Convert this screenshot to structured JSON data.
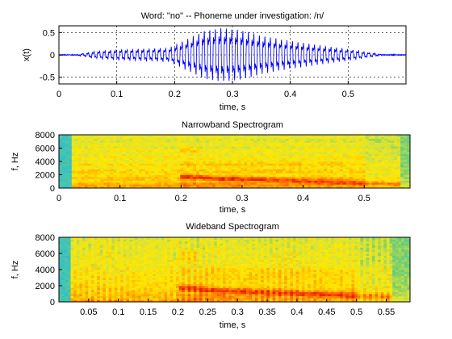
{
  "figure": {
    "top_title": "Word: \"no\" --  Phoneme under investigation: /n/",
    "narrow_title": "Narrowband Spectrogram",
    "wide_title": "Wideband Spectrogram"
  },
  "chart_data": [
    {
      "type": "line",
      "title": "Word: \"no\" --  Phoneme under investigation: /n/",
      "xlabel": "time, s",
      "ylabel": "x(t)",
      "xlim": [
        0,
        0.6
      ],
      "ylim": [
        -0.65,
        0.65
      ],
      "x_ticks": [
        0,
        0.1,
        0.2,
        0.3,
        0.4,
        0.5
      ],
      "x_tick_labels": [
        "0",
        "0.1",
        "0.2",
        "0.3",
        "0.4",
        "0.5"
      ],
      "y_ticks": [
        -0.5,
        0,
        0.5
      ],
      "y_tick_labels": [
        "-0.5",
        "0",
        "0.5"
      ],
      "grid": true,
      "line_color": "#0000ff",
      "signal": {
        "onset_s": 0.03,
        "offset_s": 0.56,
        "pitch_hz": 105,
        "envelope": [
          {
            "t": 0.03,
            "amp": 0.0
          },
          {
            "t": 0.06,
            "amp": 0.08
          },
          {
            "t": 0.1,
            "amp": 0.12
          },
          {
            "t": 0.15,
            "amp": 0.14
          },
          {
            "t": 0.19,
            "amp": 0.16
          },
          {
            "t": 0.22,
            "amp": 0.35
          },
          {
            "t": 0.25,
            "amp": 0.55
          },
          {
            "t": 0.28,
            "amp": 0.62
          },
          {
            "t": 0.31,
            "amp": 0.58
          },
          {
            "t": 0.35,
            "amp": 0.45
          },
          {
            "t": 0.4,
            "amp": 0.32
          },
          {
            "t": 0.45,
            "amp": 0.22
          },
          {
            "t": 0.5,
            "amp": 0.13
          },
          {
            "t": 0.54,
            "amp": 0.05
          },
          {
            "t": 0.56,
            "amp": 0.0
          }
        ]
      }
    },
    {
      "type": "heatmap",
      "title": "Narrowband Spectrogram",
      "xlabel": "time, s",
      "ylabel": "f, Hz",
      "xlim": [
        0,
        0.575
      ],
      "ylim": [
        0,
        8000
      ],
      "x_ticks": [
        0,
        0.1,
        0.2,
        0.3,
        0.4,
        0.5
      ],
      "x_tick_labels": [
        "0",
        "0.1",
        "0.2",
        "0.3",
        "0.4",
        "0.5"
      ],
      "y_ticks": [
        0,
        2000,
        4000,
        6000,
        8000
      ],
      "y_tick_labels": [
        "0",
        "2000",
        "4000",
        "6000",
        "8000"
      ],
      "colormap": [
        "#2a9cd6",
        "#38c2c2",
        "#7ccf6a",
        "#d8e23a",
        "#ffe800",
        "#ffb000",
        "#ff6a00",
        "#e81a00"
      ],
      "grid": false
    },
    {
      "type": "heatmap",
      "title": "Wideband Spectrogram",
      "xlabel": "time, s",
      "ylabel": "f, Hz",
      "xlim": [
        0,
        0.59
      ],
      "ylim": [
        0,
        8000
      ],
      "x_ticks": [
        0.05,
        0.1,
        0.15,
        0.2,
        0.25,
        0.3,
        0.35,
        0.4,
        0.45,
        0.5,
        0.55
      ],
      "x_tick_labels": [
        "0.05",
        "0.1",
        "0.15",
        "0.2",
        "0.25",
        "0.3",
        "0.35",
        "0.4",
        "0.45",
        "0.5",
        "0.55"
      ],
      "y_ticks": [
        0,
        2000,
        4000,
        6000,
        8000
      ],
      "y_tick_labels": [
        "0",
        "2000",
        "4000",
        "6000",
        "8000"
      ],
      "colormap": [
        "#2a9cd6",
        "#38c2c2",
        "#7ccf6a",
        "#d8e23a",
        "#ffe800",
        "#ffb000",
        "#ff6a00",
        "#e81a00"
      ],
      "grid": false
    }
  ]
}
